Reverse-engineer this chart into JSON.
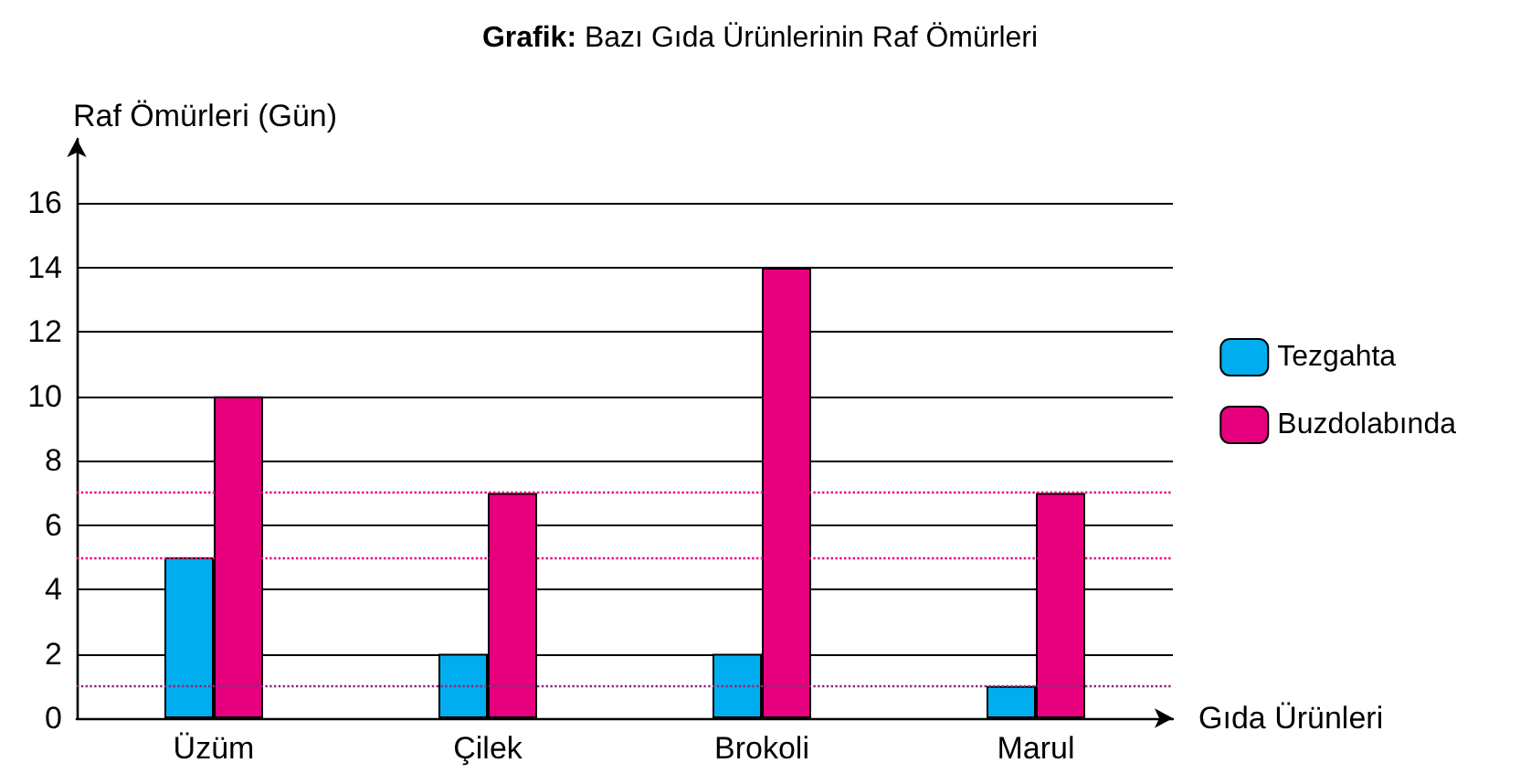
{
  "chart_data": {
    "type": "bar",
    "title": "Grafik: Bazı Gıda Ürünlerinin Raf Ömürleri",
    "xlabel": "Gıda Ürünleri",
    "ylabel": "Raf Ömürleri (Gün)",
    "categories": [
      "Üzüm",
      "Çilek",
      "Brokoli",
      "Marul"
    ],
    "series": [
      {
        "name": "Tezgahta",
        "color": "#00aeef",
        "values": [
          5,
          2,
          2,
          1
        ]
      },
      {
        "name": "Buzdolabında",
        "color": "#e6007e",
        "values": [
          10,
          7,
          14,
          7
        ]
      }
    ],
    "ylim": [
      0,
      18
    ],
    "yticks": [
      0,
      2,
      4,
      6,
      8,
      10,
      12,
      14,
      16
    ],
    "grid": "y",
    "legend": "right",
    "ref_lines": [
      {
        "axis": "y",
        "value": 1,
        "color": "#8a2b78",
        "line_style": "dotted"
      },
      {
        "axis": "y",
        "value": 5,
        "color": "#e6007e",
        "line_style": "dotted"
      },
      {
        "axis": "y",
        "value": 7,
        "color": "#e6007e",
        "line_style": "dotted"
      }
    ]
  }
}
